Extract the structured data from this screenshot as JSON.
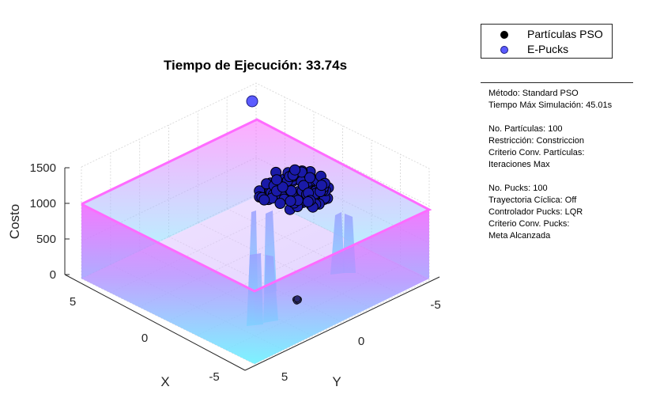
{
  "chart_data": {
    "type": "surface3d",
    "title": "Tiempo de Ejecución: 33.74s",
    "xlabel": "X",
    "ylabel": "Y",
    "zlabel": "Costo",
    "x_ticks": [
      "5",
      "0",
      "-5"
    ],
    "y_ticks": [
      "5",
      "0",
      "-5"
    ],
    "z_ticks": [
      "1500",
      "1000",
      "500",
      "0"
    ],
    "xlim": [
      -6,
      6
    ],
    "ylim": [
      -6,
      6
    ],
    "zlim": [
      0,
      1500
    ],
    "grid": true,
    "surface": {
      "wall_height": 1000,
      "floor": 0,
      "colormap": [
        "#55ffff",
        "#ff55ff"
      ]
    },
    "series": [
      {
        "name": "Partículas PSO",
        "color": "#000000",
        "count": 100,
        "center": [
          -2.5,
          -2.0
        ],
        "z": 1000
      },
      {
        "name": "E-Pucks",
        "color": "#5b5bff"
      }
    ],
    "epucks": {
      "outlier": {
        "x": 6,
        "y": 6,
        "z": 1500
      }
    },
    "legend_position": "outside-top-right"
  },
  "legend": {
    "items": [
      {
        "label": "Partículas PSO",
        "color": "#000000"
      },
      {
        "label": "E-Pucks",
        "color": "#5b5bff"
      }
    ]
  },
  "info": {
    "lines": [
      "Método: Standard PSO",
      "Tiempo Máx Simulación: 45.01s",
      "",
      "No. Partículas: 100",
      "Restricción: Constriccion",
      "Criterio Conv. Partículas:",
      "Iteraciones Max",
      "",
      "No. Pucks: 100",
      "Trayectoria Cíclica: Off",
      "Controlador Pucks: LQR",
      "Criterio Conv. Pucks:",
      "Meta Alcanzada"
    ]
  }
}
